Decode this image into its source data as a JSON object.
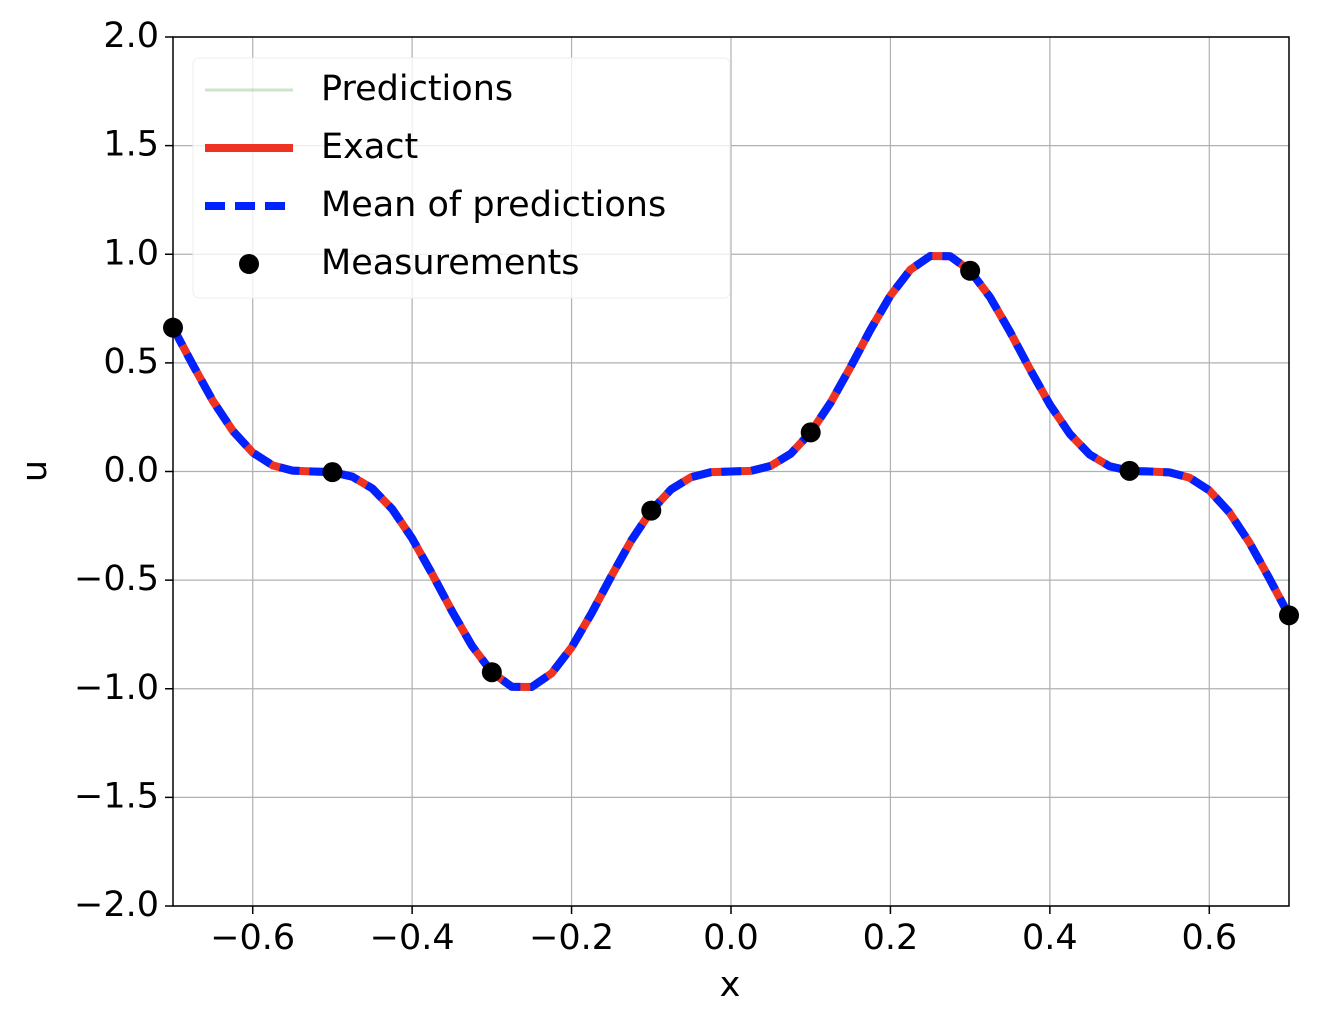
{
  "chart_data": {
    "type": "line",
    "xlabel": "x",
    "ylabel": "u",
    "x": [
      -0.7,
      -0.675,
      -0.65,
      -0.625,
      -0.6,
      -0.575,
      -0.55,
      -0.525,
      -0.5,
      -0.475,
      -0.45,
      -0.425,
      -0.4,
      -0.375,
      -0.35,
      -0.325,
      -0.3,
      -0.275,
      -0.25,
      -0.225,
      -0.2,
      -0.175,
      -0.15,
      -0.125,
      -0.1,
      -0.075,
      -0.05,
      -0.025,
      0,
      0.025,
      0.05,
      0.075,
      0.1,
      0.125,
      0.15,
      0.175,
      0.2,
      0.225,
      0.25,
      0.275,
      0.3,
      0.325,
      0.35,
      0.375,
      0.4,
      0.425,
      0.45,
      0.475,
      0.5,
      0.525,
      0.55,
      0.575,
      0.6,
      0.625,
      0.65,
      0.675,
      0.7
    ],
    "series": [
      {
        "name": "Predictions",
        "color": "#2ca02c",
        "opacity": 0.25,
        "width": 3,
        "values": [
          0.662,
          0.49,
          0.325,
          0.187,
          0.087,
          0.028,
          0.004,
          0,
          -0.003,
          -0.024,
          -0.078,
          -0.173,
          -0.308,
          -0.471,
          -0.643,
          -0.802,
          -0.924,
          -0.991,
          -0.992,
          -0.929,
          -0.81,
          -0.653,
          -0.481,
          -0.317,
          -0.18,
          -0.082,
          -0.026,
          -0.003,
          0,
          0.003,
          0.026,
          0.082,
          0.18,
          0.317,
          0.481,
          0.653,
          0.81,
          0.929,
          0.992,
          0.991,
          0.924,
          0.802,
          0.643,
          0.471,
          0.308,
          0.173,
          0.078,
          0.024,
          0.003,
          0,
          -0.004,
          -0.028,
          -0.087,
          -0.187,
          -0.325,
          -0.49,
          -0.662
        ]
      },
      {
        "name": "Exact",
        "color": "#ee3322",
        "width": 8,
        "values": [
          0.662,
          0.49,
          0.325,
          0.187,
          0.087,
          0.028,
          0.004,
          0,
          -0.003,
          -0.024,
          -0.078,
          -0.173,
          -0.308,
          -0.471,
          -0.643,
          -0.802,
          -0.924,
          -0.991,
          -0.992,
          -0.929,
          -0.81,
          -0.653,
          -0.481,
          -0.317,
          -0.18,
          -0.082,
          -0.026,
          -0.003,
          0,
          0.003,
          0.026,
          0.082,
          0.18,
          0.317,
          0.481,
          0.653,
          0.81,
          0.929,
          0.992,
          0.991,
          0.924,
          0.802,
          0.643,
          0.471,
          0.308,
          0.173,
          0.078,
          0.024,
          0.003,
          0,
          -0.004,
          -0.028,
          -0.087,
          -0.187,
          -0.325,
          -0.49,
          -0.662
        ]
      },
      {
        "name": "Mean of predictions",
        "color": "#0022ff",
        "width": 8,
        "linestyle": "dashed",
        "values": [
          0.662,
          0.49,
          0.325,
          0.187,
          0.087,
          0.028,
          0.004,
          0,
          -0.003,
          -0.024,
          -0.078,
          -0.173,
          -0.308,
          -0.471,
          -0.643,
          -0.802,
          -0.924,
          -0.991,
          -0.992,
          -0.929,
          -0.81,
          -0.653,
          -0.481,
          -0.317,
          -0.18,
          -0.082,
          -0.026,
          -0.003,
          0,
          0.003,
          0.026,
          0.082,
          0.18,
          0.317,
          0.481,
          0.653,
          0.81,
          0.929,
          0.992,
          0.991,
          0.924,
          0.802,
          0.643,
          0.471,
          0.308,
          0.173,
          0.078,
          0.024,
          0.003,
          0,
          -0.004,
          -0.028,
          -0.087,
          -0.187,
          -0.325,
          -0.49,
          -0.662
        ]
      },
      {
        "name": "Measurements",
        "color": "#000000",
        "marker": "circle",
        "x": [
          -0.7,
          -0.5,
          -0.3,
          -0.1,
          0.1,
          0.3,
          0.5,
          0.7
        ],
        "values": [
          0.662,
          -0.003,
          -0.924,
          -0.18,
          0.18,
          0.924,
          0.003,
          -0.662
        ]
      }
    ],
    "xlim": [
      -0.7,
      0.7
    ],
    "ylim": [
      -2,
      2
    ],
    "xticks": [
      {
        "value": -0.6,
        "label": "−0.6"
      },
      {
        "value": -0.4,
        "label": "−0.4"
      },
      {
        "value": -0.2,
        "label": "−0.2"
      },
      {
        "value": 0,
        "label": "0.0"
      },
      {
        "value": 0.2,
        "label": "0.2"
      },
      {
        "value": 0.4,
        "label": "0.4"
      },
      {
        "value": 0.6,
        "label": "0.6"
      }
    ],
    "yticks": [
      {
        "value": -2,
        "label": "−2.0"
      },
      {
        "value": -1.5,
        "label": "−1.5"
      },
      {
        "value": -1,
        "label": "−1.0"
      },
      {
        "value": -0.5,
        "label": "−0.5"
      },
      {
        "value": 0,
        "label": "0.0"
      },
      {
        "value": 0.5,
        "label": "0.5"
      },
      {
        "value": 1,
        "label": "1.0"
      },
      {
        "value": 1.5,
        "label": "1.5"
      },
      {
        "value": 2,
        "label": "2.0"
      }
    ],
    "grid": true,
    "legend": "upper left"
  }
}
